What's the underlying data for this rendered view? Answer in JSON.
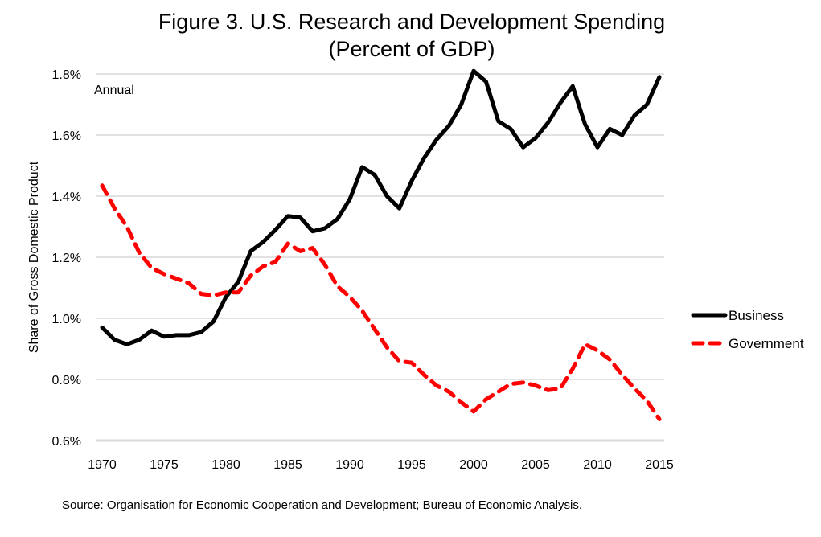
{
  "chart_data": {
    "type": "line",
    "title": "Figure 3.  U.S. Research and Development Spending",
    "subtitle": "(Percent of GDP)",
    "annotation": "Annual",
    "xlabel": "",
    "ylabel": "Share of Gross Domestic Product",
    "source": "Source:  Organisation for Economic Cooperation and Development; Bureau of Economic Analysis.",
    "xlim": [
      1970,
      2015
    ],
    "ylim": [
      0.6,
      1.8
    ],
    "x_ticks": [
      1970,
      1975,
      1980,
      1985,
      1990,
      1995,
      2000,
      2005,
      2010,
      2015
    ],
    "y_ticks": [
      0.6,
      0.8,
      1.0,
      1.2,
      1.4,
      1.6,
      1.8
    ],
    "y_tick_labels": [
      "0.6%",
      "0.8%",
      "1.0%",
      "1.2%",
      "1.4%",
      "1.6%",
      "1.8%"
    ],
    "x_tick_labels": [
      "1970",
      "1975",
      "1980",
      "1985",
      "1990",
      "1995",
      "2000",
      "2005",
      "2010",
      "2015"
    ],
    "grid": true,
    "legend_position": "right",
    "x": [
      1970,
      1971,
      1972,
      1973,
      1974,
      1975,
      1976,
      1977,
      1978,
      1979,
      1980,
      1981,
      1982,
      1983,
      1984,
      1985,
      1986,
      1987,
      1988,
      1989,
      1990,
      1991,
      1992,
      1993,
      1994,
      1995,
      1996,
      1997,
      1998,
      1999,
      2000,
      2001,
      2002,
      2003,
      2004,
      2005,
      2006,
      2007,
      2008,
      2009,
      2010,
      2011,
      2012,
      2013,
      2014,
      2015
    ],
    "series": [
      {
        "name": "Business",
        "color": "#000000",
        "style": "solid",
        "values": [
          0.97,
          0.93,
          0.915,
          0.93,
          0.96,
          0.94,
          0.945,
          0.945,
          0.955,
          0.99,
          1.07,
          1.12,
          1.22,
          1.25,
          1.29,
          1.335,
          1.33,
          1.285,
          1.295,
          1.325,
          1.39,
          1.495,
          1.47,
          1.4,
          1.36,
          1.45,
          1.525,
          1.585,
          1.63,
          1.7,
          1.81,
          1.775,
          1.645,
          1.62,
          1.56,
          1.59,
          1.64,
          1.705,
          1.76,
          1.635,
          1.56,
          1.62,
          1.6,
          1.665,
          1.7,
          1.79
        ]
      },
      {
        "name": "Government",
        "color": "#ff0000",
        "style": "dashed",
        "values": [
          1.435,
          1.36,
          1.3,
          1.215,
          1.165,
          1.145,
          1.13,
          1.115,
          1.08,
          1.075,
          1.085,
          1.085,
          1.14,
          1.17,
          1.185,
          1.245,
          1.22,
          1.23,
          1.175,
          1.105,
          1.07,
          1.025,
          0.965,
          0.905,
          0.86,
          0.855,
          0.815,
          0.78,
          0.76,
          0.725,
          0.695,
          0.735,
          0.76,
          0.785,
          0.79,
          0.78,
          0.765,
          0.77,
          0.835,
          0.915,
          0.895,
          0.865,
          0.815,
          0.77,
          0.73,
          0.67
        ]
      }
    ]
  }
}
